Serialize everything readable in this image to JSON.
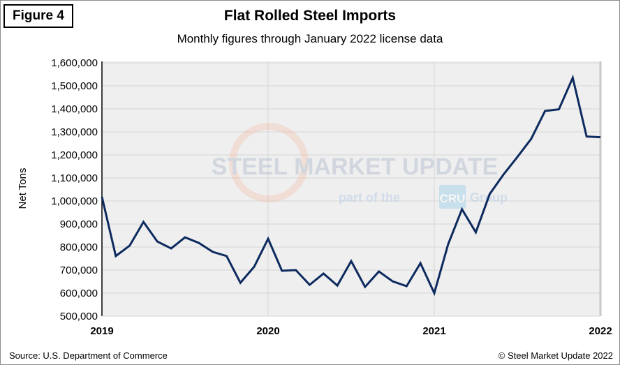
{
  "figure_label": "Figure 4",
  "source": "Source: U.S. Department of Commerce",
  "copyright": "© Steel Market Update 2022",
  "watermark": {
    "line1": "STEEL MARKET UPDATE",
    "line2_pre": "part of the",
    "line2_logo": "CRU",
    "line2_post": "Group"
  },
  "chart_data": {
    "type": "line",
    "title": "Flat Rolled Steel Imports",
    "subtitle": "Monthly figures through January 2022 license data",
    "ylabel": "Net Tons",
    "xlabel": "",
    "ylim": [
      500000,
      1600000
    ],
    "yticks": [
      "500,000",
      "600,000",
      "700,000",
      "800,000",
      "900,000",
      "1,000,000",
      "1,100,000",
      "1,200,000",
      "1,300,000",
      "1,400,000",
      "1,500,000",
      "1,600,000"
    ],
    "xticks": [
      "2019",
      "2020",
      "2021",
      "2022"
    ],
    "grid": true,
    "line_color": "#0d2a5e",
    "x": [
      "2019-01",
      "2019-02",
      "2019-03",
      "2019-04",
      "2019-05",
      "2019-06",
      "2019-07",
      "2019-08",
      "2019-09",
      "2019-10",
      "2019-11",
      "2019-12",
      "2020-01",
      "2020-02",
      "2020-03",
      "2020-04",
      "2020-05",
      "2020-06",
      "2020-07",
      "2020-08",
      "2020-09",
      "2020-10",
      "2020-11",
      "2020-12",
      "2021-01",
      "2021-02",
      "2021-03",
      "2021-04",
      "2021-05",
      "2021-06",
      "2021-07",
      "2021-08",
      "2021-09",
      "2021-10",
      "2021-11",
      "2021-12",
      "2022-01"
    ],
    "values": [
      1018000,
      761000,
      806000,
      909000,
      824000,
      794000,
      842000,
      818000,
      779000,
      761000,
      645000,
      715000,
      836000,
      697000,
      700000,
      636000,
      685000,
      633000,
      739000,
      627000,
      694000,
      651000,
      630000,
      730000,
      600000,
      812000,
      964000,
      864000,
      1030000,
      1115000,
      1191000,
      1270000,
      1391000,
      1398000,
      1535000,
      1280000,
      1277000
    ]
  }
}
